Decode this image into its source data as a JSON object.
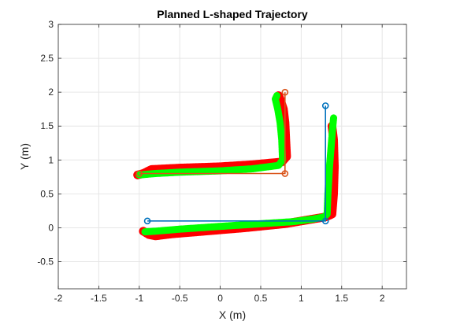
{
  "chart_data": {
    "type": "line",
    "title": "Planned L-shaped Trajectory",
    "xlabel": "X (m)",
    "ylabel": "Y (m)",
    "xlim": [
      -2,
      2.3
    ],
    "ylim": [
      -0.9,
      3
    ],
    "xticks": [
      -2,
      -1.5,
      -1,
      -0.5,
      0,
      0.5,
      1,
      1.5,
      2
    ],
    "yticks": [
      -0.5,
      0,
      0.5,
      1,
      1.5,
      2,
      2.5,
      3
    ],
    "xtick_labels": [
      "-2",
      "-1.5",
      "-1",
      "-0.5",
      "0",
      "0.5",
      "1",
      "1.5",
      "2"
    ],
    "ytick_labels": [
      "-0.5",
      "0",
      "0.5",
      "1",
      "1.5",
      "2",
      "2.5",
      "3"
    ],
    "grid": true,
    "series": [
      {
        "role": "planned-path-1",
        "color": "#0072BD",
        "marker": "circle",
        "x": [
          -0.9,
          1.3,
          1.3
        ],
        "y": [
          0.1,
          0.1,
          1.8
        ]
      },
      {
        "role": "planned-path-2",
        "color": "#D95319",
        "marker": "circle",
        "x": [
          -1.0,
          0.8,
          0.8
        ],
        "y": [
          0.8,
          0.8,
          2.0
        ]
      },
      {
        "role": "actual-red-1",
        "color": "#FF0000",
        "x": [
          -0.95,
          -0.88,
          -0.8,
          -0.6,
          -0.2,
          0.3,
          0.8,
          1.1,
          1.3,
          1.38,
          1.4,
          1.41,
          1.4,
          1.38
        ],
        "y": [
          -0.05,
          -0.1,
          -0.12,
          -0.09,
          -0.05,
          0.0,
          0.06,
          0.12,
          0.16,
          0.2,
          0.5,
          0.9,
          1.3,
          1.5
        ]
      },
      {
        "role": "actual-red-2",
        "color": "#FF0000",
        "x": [
          -1.02,
          -0.95,
          -0.85,
          -0.5,
          0.0,
          0.4,
          0.76,
          0.82,
          0.81,
          0.8,
          0.78,
          0.74,
          0.72
        ],
        "y": [
          0.78,
          0.8,
          0.86,
          0.88,
          0.9,
          0.93,
          0.97,
          1.05,
          1.3,
          1.55,
          1.75,
          1.9,
          1.95
        ]
      },
      {
        "role": "actual-green-1",
        "color": "#00FF00",
        "x": [
          -0.93,
          -0.8,
          -0.5,
          0.0,
          0.5,
          0.9,
          1.15,
          1.28,
          1.32,
          1.33,
          1.35,
          1.37,
          1.39,
          1.4
        ],
        "y": [
          -0.06,
          -0.05,
          -0.02,
          0.02,
          0.06,
          0.09,
          0.13,
          0.16,
          0.2,
          0.5,
          0.9,
          1.2,
          1.5,
          1.62
        ]
      },
      {
        "role": "actual-green-2",
        "color": "#00FF00",
        "x": [
          -1.0,
          -0.8,
          -0.5,
          0.0,
          0.4,
          0.72,
          0.77,
          0.76,
          0.74,
          0.71,
          0.68,
          0.7
        ],
        "y": [
          0.78,
          0.8,
          0.82,
          0.84,
          0.87,
          0.92,
          1.0,
          1.3,
          1.55,
          1.75,
          1.9,
          1.95
        ]
      }
    ]
  }
}
